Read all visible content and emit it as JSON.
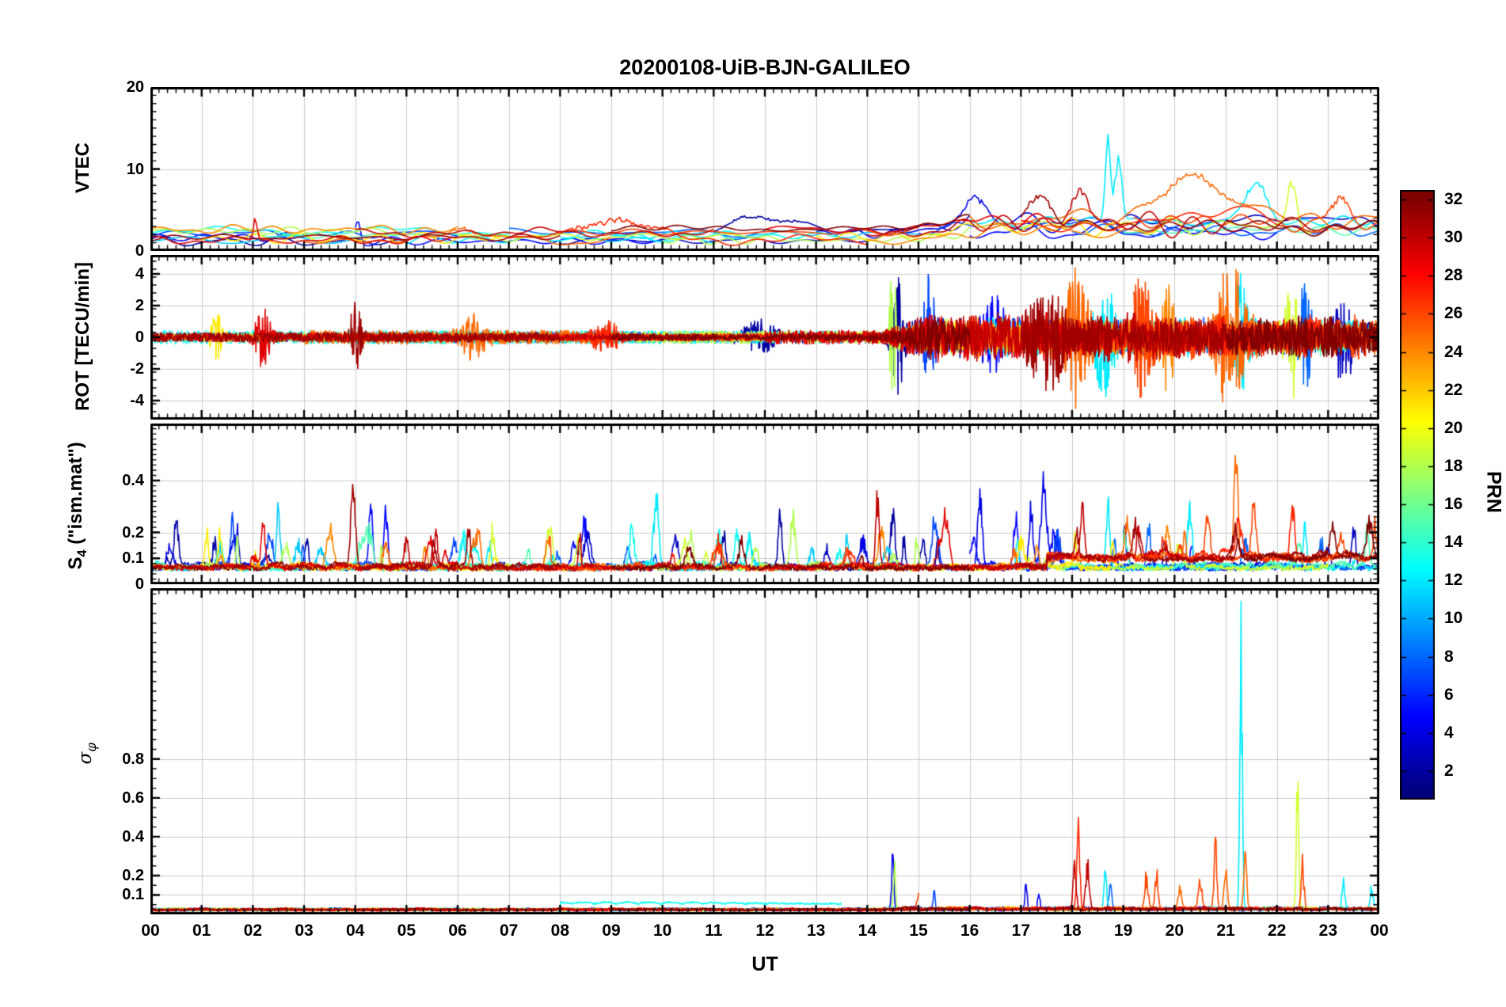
{
  "figure": {
    "title": "20200108-UiB-BJN-GALILEO"
  },
  "chart_data": {
    "type": "line",
    "title": "20200108-UiB-BJN-GALILEO",
    "xlabel": "UT",
    "x_ticks": [
      "00",
      "01",
      "02",
      "03",
      "04",
      "05",
      "06",
      "07",
      "08",
      "09",
      "10",
      "11",
      "12",
      "13",
      "14",
      "15",
      "16",
      "17",
      "18",
      "19",
      "20",
      "21",
      "22",
      "23",
      "00"
    ],
    "x_range_hours": [
      0,
      24
    ],
    "grid": true,
    "colorbar": {
      "label": "PRN",
      "colormap": "jet",
      "vmin": 0.5,
      "vmax": 32.5,
      "ticks": [
        2,
        4,
        6,
        8,
        10,
        12,
        14,
        16,
        18,
        20,
        22,
        24,
        26,
        28,
        30,
        32
      ]
    },
    "satellites": [
      {
        "prn": 2,
        "arcs": [
          [
            0,
            5
          ],
          [
            11,
            16
          ]
        ]
      },
      {
        "prn": 3,
        "arcs": [
          [
            8,
            14
          ],
          [
            19,
            24
          ]
        ]
      },
      {
        "prn": 4,
        "arcs": [
          [
            0,
            3
          ],
          [
            13,
            19
          ]
        ]
      },
      {
        "prn": 5,
        "arcs": [
          [
            4,
            10
          ],
          [
            16,
            22
          ]
        ]
      },
      {
        "prn": 7,
        "arcs": [
          [
            0,
            6
          ],
          [
            15,
            21
          ]
        ]
      },
      {
        "prn": 8,
        "arcs": [
          [
            7,
            12
          ],
          [
            18,
            24
          ]
        ]
      },
      {
        "prn": 11,
        "arcs": [
          [
            0,
            4
          ],
          [
            9,
            15
          ]
        ]
      },
      {
        "prn": 12,
        "arcs": [
          [
            5,
            11
          ],
          [
            16,
            23.9
          ]
        ]
      },
      {
        "prn": 13,
        "arcs": [
          [
            0,
            7
          ],
          [
            8,
            13.5
          ]
        ]
      },
      {
        "prn": 15,
        "arcs": [
          [
            2,
            8
          ],
          [
            19,
            24
          ]
        ]
      },
      {
        "prn": 18,
        "arcs": [
          [
            0,
            5
          ],
          [
            10,
            16
          ]
        ]
      },
      {
        "prn": 19,
        "arcs": [
          [
            6,
            12
          ],
          [
            17,
            23
          ]
        ]
      },
      {
        "prn": 21,
        "arcs": [
          [
            1,
            7
          ],
          [
            13,
            19
          ]
        ]
      },
      {
        "prn": 24,
        "arcs": [
          [
            0,
            6
          ],
          [
            14,
            20
          ]
        ]
      },
      {
        "prn": 25,
        "arcs": [
          [
            3,
            9
          ],
          [
            16,
            24
          ]
        ]
      },
      {
        "prn": 26,
        "arcs": [
          [
            8,
            15
          ],
          [
            19.2,
            24
          ]
        ]
      },
      {
        "prn": 27,
        "arcs": [
          [
            7,
            14
          ],
          [
            17,
            23
          ]
        ]
      },
      {
        "prn": 29,
        "arcs": [
          [
            0,
            6
          ],
          [
            12,
            18
          ]
        ]
      },
      {
        "prn": 30,
        "arcs": [
          [
            4,
            11
          ],
          [
            14,
            21
          ]
        ]
      },
      {
        "prn": 31,
        "arcs": [
          [
            0,
            8
          ],
          [
            17,
            24
          ]
        ]
      },
      {
        "prn": 32,
        "arcs": [
          [
            9,
            16
          ],
          [
            21,
            24
          ]
        ]
      }
    ],
    "panels": [
      {
        "id": "vtec",
        "ylabel": "VTEC",
        "ylim": [
          0,
          20
        ],
        "yticks": [
          20,
          10,
          0
        ],
        "yminor": 1,
        "quiet_baseline_range": [
          1,
          3
        ],
        "active_period": [
          15,
          24
        ],
        "features": [
          {
            "t": 2.05,
            "v": 4.5,
            "prn": 29,
            "w": 0.05
          },
          {
            "t": 4.05,
            "v": 4.6,
            "prn": 5,
            "w": 0.07
          },
          {
            "t": 6.2,
            "v": 3.6,
            "prn": 25,
            "w": 0.5
          },
          {
            "t": 9.0,
            "v": 4.3,
            "prn": 27,
            "w": 1.0
          },
          {
            "t": 12.0,
            "v": 3.4,
            "prn": 2,
            "w": 0.7
          },
          {
            "t": 16.1,
            "v": 5.4,
            "prn": 4,
            "w": 0.3
          },
          {
            "t": 17.3,
            "v": 5.8,
            "prn": 31,
            "w": 0.35
          },
          {
            "t": 18.15,
            "v": 6.6,
            "prn": 30,
            "w": 0.25
          },
          {
            "t": 18.7,
            "v": 15.0,
            "prn": 12,
            "w": 0.07
          },
          {
            "t": 18.9,
            "v": 10.5,
            "prn": 12,
            "w": 0.1
          },
          {
            "t": 20.3,
            "v": 5.5,
            "prn": 25,
            "w": 0.8
          },
          {
            "t": 21.6,
            "v": 6.8,
            "prn": 12,
            "w": 0.3
          },
          {
            "t": 22.3,
            "v": 7.5,
            "prn": 19,
            "w": 0.12
          },
          {
            "t": 23.2,
            "v": 5.0,
            "prn": 26,
            "w": 0.3
          }
        ]
      },
      {
        "id": "rot",
        "ylabel": "ROT [TECU/min]",
        "ylim": [
          -5.2,
          5.2
        ],
        "yticks": [
          4,
          2,
          0,
          -2,
          -4
        ],
        "yminor": 0.5,
        "quiet_amplitude": 0.4,
        "active_period": [
          14.3,
          24
        ],
        "features": [
          {
            "t": 1.3,
            "a": 1.4,
            "prn": 21,
            "w": 0.12
          },
          {
            "t": 2.2,
            "a": 1.8,
            "prn": 29,
            "w": 0.15
          },
          {
            "t": 4.0,
            "a": 2.2,
            "prn": 31,
            "w": 0.12
          },
          {
            "t": 6.3,
            "a": 1.1,
            "prn": 25,
            "w": 0.25
          },
          {
            "t": 8.9,
            "a": 0.9,
            "prn": 27,
            "w": 0.3
          },
          {
            "t": 11.9,
            "a": 0.8,
            "prn": 2,
            "w": 0.3
          },
          {
            "t": 14.5,
            "a": 3.9,
            "prn": 18,
            "w": 0.08
          },
          {
            "t": 14.6,
            "a": 3.3,
            "prn": 2,
            "w": 0.12
          },
          {
            "t": 15.2,
            "a": 3.0,
            "prn": 7,
            "w": 0.12
          },
          {
            "t": 16.5,
            "a": 1.8,
            "prn": 5,
            "w": 0.3
          },
          {
            "t": 17.5,
            "a": 2.4,
            "prn": 31,
            "w": 0.4
          },
          {
            "t": 18.1,
            "a": 3.7,
            "prn": 25,
            "w": 0.25
          },
          {
            "t": 18.65,
            "a": 3.4,
            "prn": 12,
            "w": 0.2
          },
          {
            "t": 19.3,
            "a": 2.8,
            "prn": 26,
            "w": 0.3
          },
          {
            "t": 19.85,
            "a": 2.6,
            "prn": 24,
            "w": 0.2
          },
          {
            "t": 21.1,
            "a": 4.0,
            "prn": 25,
            "w": 0.3
          },
          {
            "t": 21.3,
            "a": 3.3,
            "prn": 12,
            "w": 0.15
          },
          {
            "t": 22.3,
            "a": 3.8,
            "prn": 19,
            "w": 0.12
          },
          {
            "t": 22.55,
            "a": 3.6,
            "prn": 8,
            "w": 0.12
          },
          {
            "t": 23.3,
            "a": 2.4,
            "prn": 3,
            "w": 0.2
          }
        ]
      },
      {
        "id": "s4",
        "ylabel_main": "S",
        "ylabel_sub": "4",
        "ylabel_rest": " (\"ism.mat\")",
        "ylim": [
          0,
          0.62
        ],
        "yticks": [
          0.4,
          0.2,
          0.1,
          0
        ],
        "yminor": 0.02,
        "baseline": 0.06,
        "features": [
          {
            "t": 0.5,
            "v": 0.3,
            "prn": 2,
            "w": 0.06
          },
          {
            "t": 1.1,
            "v": 0.22,
            "prn": 21,
            "w": 0.05
          },
          {
            "t": 1.6,
            "v": 0.27,
            "prn": 7,
            "w": 0.05
          },
          {
            "t": 2.2,
            "v": 0.26,
            "prn": 29,
            "w": 0.05
          },
          {
            "t": 2.5,
            "v": 0.33,
            "prn": 11,
            "w": 0.05
          },
          {
            "t": 3.05,
            "v": 0.2,
            "prn": 2,
            "w": 0.05
          },
          {
            "t": 3.95,
            "v": 0.33,
            "prn": 31,
            "w": 0.06
          },
          {
            "t": 4.3,
            "v": 0.35,
            "prn": 5,
            "w": 0.05
          },
          {
            "t": 4.6,
            "v": 0.33,
            "prn": 5,
            "w": 0.05
          },
          {
            "t": 6.1,
            "v": 0.21,
            "prn": 12,
            "w": 0.06
          },
          {
            "t": 6.4,
            "v": 0.25,
            "prn": 25,
            "w": 0.06
          },
          {
            "t": 7.8,
            "v": 0.27,
            "prn": 19,
            "w": 0.07
          },
          {
            "t": 8.35,
            "v": 0.2,
            "prn": 19,
            "w": 0.05
          },
          {
            "t": 9.4,
            "v": 0.28,
            "prn": 13,
            "w": 0.06
          },
          {
            "t": 9.9,
            "v": 0.27,
            "prn": 12,
            "w": 0.05
          },
          {
            "t": 10.55,
            "v": 0.25,
            "prn": 18,
            "w": 0.06
          },
          {
            "t": 11.2,
            "v": 0.22,
            "prn": 2,
            "w": 0.05
          },
          {
            "t": 11.45,
            "v": 0.24,
            "prn": 13,
            "w": 0.05
          },
          {
            "t": 12.3,
            "v": 0.33,
            "prn": 2,
            "w": 0.05
          },
          {
            "t": 12.55,
            "v": 0.3,
            "prn": 18,
            "w": 0.06
          },
          {
            "t": 13.6,
            "v": 0.2,
            "prn": 11,
            "w": 0.05
          },
          {
            "t": 14.2,
            "v": 0.38,
            "prn": 30,
            "w": 0.05
          },
          {
            "t": 14.5,
            "v": 0.33,
            "prn": 2,
            "w": 0.06
          },
          {
            "t": 15.3,
            "v": 0.25,
            "prn": 7,
            "w": 0.06
          },
          {
            "t": 15.65,
            "v": 0.38,
            "prn": 25,
            "w": 0.05
          },
          {
            "t": 16.2,
            "v": 0.39,
            "prn": 4,
            "w": 0.06
          },
          {
            "t": 16.9,
            "v": 0.3,
            "prn": 5,
            "w": 0.06
          },
          {
            "t": 17.2,
            "v": 0.33,
            "prn": 4,
            "w": 0.06
          },
          {
            "t": 17.45,
            "v": 0.46,
            "prn": 4,
            "w": 0.08
          },
          {
            "t": 18.2,
            "v": 0.3,
            "prn": 30,
            "w": 0.06
          },
          {
            "t": 18.7,
            "v": 0.35,
            "prn": 12,
            "w": 0.05
          },
          {
            "t": 19.5,
            "v": 0.25,
            "prn": 8,
            "w": 0.06
          },
          {
            "t": 20.3,
            "v": 0.32,
            "prn": 12,
            "w": 0.06
          },
          {
            "t": 20.65,
            "v": 0.28,
            "prn": 26,
            "w": 0.06
          },
          {
            "t": 21.2,
            "v": 0.6,
            "prn": 25,
            "w": 0.05
          },
          {
            "t": 21.55,
            "v": 0.3,
            "prn": 26,
            "w": 0.06
          },
          {
            "t": 22.3,
            "v": 0.33,
            "prn": 27,
            "w": 0.06
          },
          {
            "t": 22.55,
            "v": 0.25,
            "prn": 12,
            "w": 0.05
          },
          {
            "t": 23.5,
            "v": 0.27,
            "prn": 3,
            "w": 0.05
          }
        ]
      },
      {
        "id": "sigma",
        "ylabel_main": "σ",
        "ylabel_sub": "φ",
        "ylim": [
          0,
          1.68
        ],
        "yticks": [
          0.8,
          0.6,
          0.4,
          0.2,
          0.1
        ],
        "yminor": 0.05,
        "baseline": 0.02,
        "elevated": {
          "prn": 13,
          "from": 8,
          "to": 13.5,
          "value": 0.05
        },
        "features": [
          {
            "t": 14.5,
            "v": 0.41,
            "prn": 4,
            "w": 0.03
          },
          {
            "t": 14.53,
            "v": 0.3,
            "prn": 18,
            "w": 0.03
          },
          {
            "t": 15.0,
            "v": 0.12,
            "prn": 26,
            "w": 0.04
          },
          {
            "t": 15.3,
            "v": 0.15,
            "prn": 7,
            "w": 0.03
          },
          {
            "t": 17.1,
            "v": 0.18,
            "prn": 4,
            "w": 0.03
          },
          {
            "t": 17.35,
            "v": 0.12,
            "prn": 5,
            "w": 0.03
          },
          {
            "t": 18.05,
            "v": 0.35,
            "prn": 30,
            "w": 0.04
          },
          {
            "t": 18.12,
            "v": 0.58,
            "prn": 27,
            "w": 0.04
          },
          {
            "t": 18.3,
            "v": 0.3,
            "prn": 30,
            "w": 0.05
          },
          {
            "t": 18.65,
            "v": 0.25,
            "prn": 12,
            "w": 0.04
          },
          {
            "t": 18.75,
            "v": 0.18,
            "prn": 8,
            "w": 0.04
          },
          {
            "t": 19.45,
            "v": 0.22,
            "prn": 26,
            "w": 0.05
          },
          {
            "t": 19.65,
            "v": 0.25,
            "prn": 26,
            "w": 0.04
          },
          {
            "t": 20.1,
            "v": 0.15,
            "prn": 25,
            "w": 0.05
          },
          {
            "t": 20.5,
            "v": 0.2,
            "prn": 26,
            "w": 0.05
          },
          {
            "t": 20.8,
            "v": 0.43,
            "prn": 26,
            "w": 0.04
          },
          {
            "t": 21.0,
            "v": 0.3,
            "prn": 25,
            "w": 0.04
          },
          {
            "t": 21.3,
            "v": 1.65,
            "prn": 12,
            "w": 0.035
          },
          {
            "t": 21.38,
            "v": 0.4,
            "prn": 25,
            "w": 0.04
          },
          {
            "t": 22.4,
            "v": 0.78,
            "prn": 19,
            "w": 0.035
          },
          {
            "t": 22.5,
            "v": 0.3,
            "prn": 26,
            "w": 0.04
          },
          {
            "t": 23.3,
            "v": 0.2,
            "prn": 12,
            "w": 0.04
          },
          {
            "t": 23.85,
            "v": 0.18,
            "prn": 12,
            "w": 0.04
          }
        ]
      }
    ]
  }
}
